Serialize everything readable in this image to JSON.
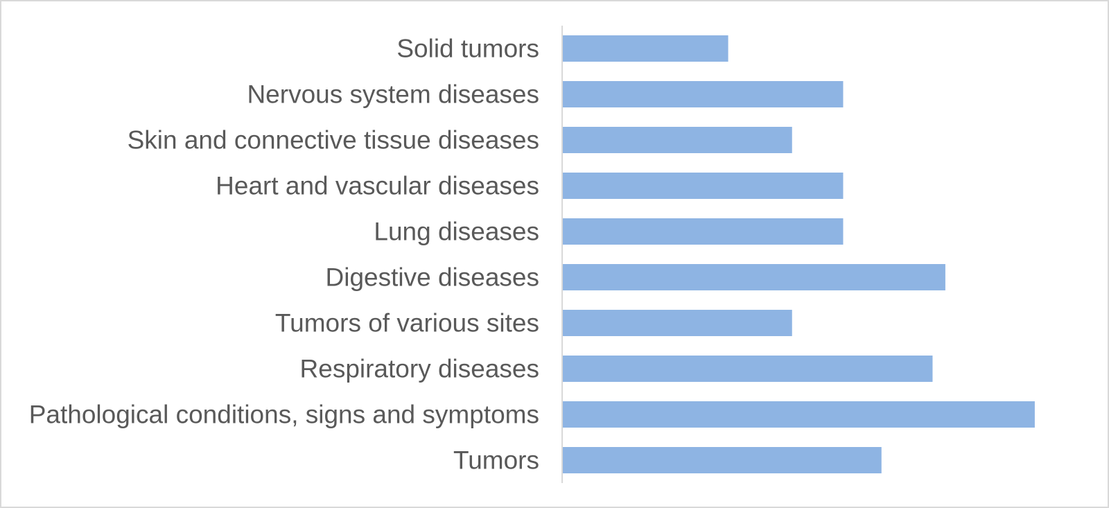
{
  "chart_data": {
    "type": "bar",
    "orientation": "horizontal",
    "categories": [
      "Solid tumors",
      "Nervous system diseases",
      "Skin and connective tissue diseases",
      "Heart and vascular diseases",
      "Lung diseases",
      "Digestive diseases",
      "Tumors of various sites",
      "Respiratory diseases",
      "Pathological conditions, signs and symptoms",
      "Tumors"
    ],
    "values": [
      13,
      22,
      18,
      22,
      22,
      30,
      18,
      29,
      37,
      25
    ],
    "xlim": [
      0,
      40
    ],
    "bar_color": "#8eb4e3",
    "axis_color": "#d9d9d9",
    "label_color": "#595959",
    "grid": false,
    "legend": "none",
    "title": "",
    "xlabel": "",
    "ylabel": ""
  }
}
